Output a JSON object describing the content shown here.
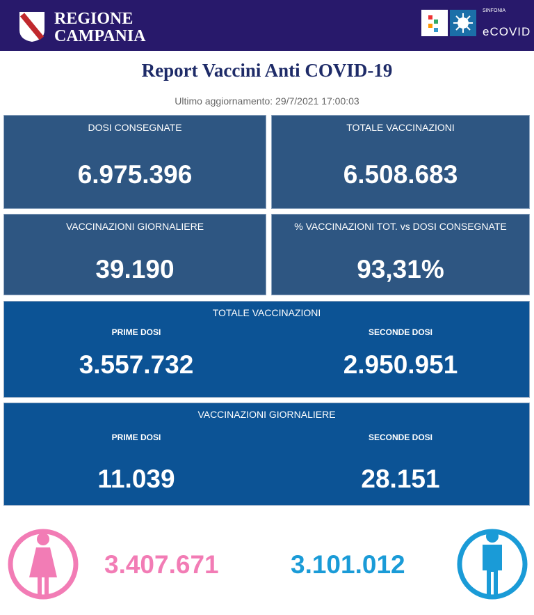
{
  "header": {
    "logo_line1": "REGIONE",
    "logo_line2": "CAMPANIA",
    "brand_small": "SINFONIA",
    "brand": "eCOVID"
  },
  "title": "Report Vaccini Anti COVID-19",
  "updated": "Ultimo aggiornamento: 29/7/2021 17:00:03",
  "cards": [
    {
      "label": "DOSI  CONSEGNATE",
      "value": "6.975.396"
    },
    {
      "label": "TOTALE VACCINAZIONI",
      "value": "6.508.683"
    },
    {
      "label": "VACCINAZIONI GIORNALIERE",
      "value": "39.190"
    },
    {
      "label": "% VACCINAZIONI TOT. vs DOSI CONSEGNATE",
      "value": "93,31%"
    }
  ],
  "panels": [
    {
      "title": "TOTALE VACCINAZIONI",
      "items": [
        {
          "label": "PRIME DOSI",
          "value": "3.557.732"
        },
        {
          "label": "SECONDE DOSI",
          "value": "2.950.951"
        }
      ]
    },
    {
      "title": "VACCINAZIONI GIORNALIERE",
      "items": [
        {
          "label": "PRIME DOSI",
          "value": "11.039"
        },
        {
          "label": "SECONDE DOSI",
          "value": "28.151"
        }
      ]
    }
  ],
  "gender": {
    "female": "3.407.671",
    "male": "3.101.012"
  }
}
